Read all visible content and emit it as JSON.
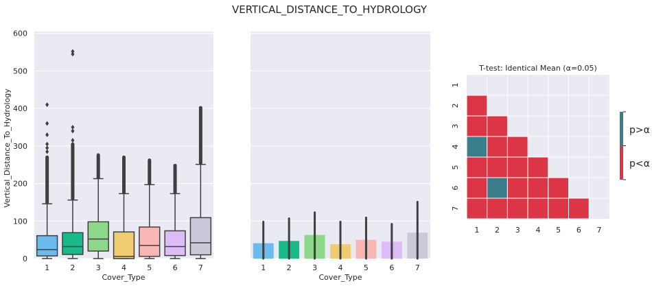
{
  "figure": {
    "title": "VERTICAL_DISTANCE_TO_HYDROLOGY"
  },
  "colors": {
    "panel_bg": "#eaeaf2",
    "grid": "#ffffff",
    "box_edge": "#3f3f3f",
    "significant": "#dc3545",
    "not_significant": "#3a7e8c",
    "categories": [
      "#6bbbef",
      "#19b98a",
      "#8ed88a",
      "#f0cc70",
      "#f8b7b4",
      "#dcbdf7",
      "#c9c9d9"
    ]
  },
  "chart_data": [
    {
      "type": "box",
      "xlabel": "Cover_Type",
      "ylabel": "Vertical_Distance_To_Hydrology",
      "categories": [
        "1",
        "2",
        "3",
        "4",
        "5",
        "6",
        "7"
      ],
      "ylim": [
        0,
        605
      ],
      "yticks": [
        0,
        100,
        200,
        300,
        400,
        500,
        600
      ],
      "grid": true,
      "boxes": [
        {
          "q1": 7,
          "median": 24,
          "q3": 61,
          "whisker_low": 0,
          "whisker_high": 146,
          "outliers_dense": [
            150,
            270
          ],
          "outliers": [
            285,
            295,
            305,
            330,
            360,
            410
          ]
        },
        {
          "q1": 11,
          "median": 32,
          "q3": 69,
          "whisker_low": 0,
          "whisker_high": 156,
          "outliers_dense": [
            160,
            305
          ],
          "outliers": [
            315,
            340,
            350,
            545,
            552
          ]
        },
        {
          "q1": 20,
          "median": 52,
          "q3": 98,
          "whisker_low": 0,
          "whisker_high": 213,
          "outliers_dense": [
            216,
            276
          ],
          "outliers": []
        },
        {
          "q1": 0,
          "median": 6,
          "q3": 71,
          "whisker_low": 0,
          "whisker_high": 173,
          "outliers_dense": [
            176,
            270
          ],
          "outliers": []
        },
        {
          "q1": 6,
          "median": 35,
          "q3": 84,
          "whisker_low": 0,
          "whisker_high": 197,
          "outliers_dense": [
            200,
            262
          ],
          "outliers": []
        },
        {
          "q1": 8,
          "median": 32,
          "q3": 74,
          "whisker_low": 0,
          "whisker_high": 173,
          "outliers_dense": [
            176,
            248
          ],
          "outliers": []
        },
        {
          "q1": 10,
          "median": 42,
          "q3": 109,
          "whisker_low": 0,
          "whisker_high": 251,
          "outliers_dense": [
            255,
            402
          ],
          "outliers": []
        }
      ]
    },
    {
      "type": "bar",
      "xlabel": "Cover_Type",
      "ylabel": "",
      "categories": [
        "1",
        "2",
        "3",
        "4",
        "5",
        "6",
        "7"
      ],
      "values": [
        41,
        47,
        63,
        38,
        50,
        45,
        69
      ],
      "error_low": [
        0,
        0,
        0,
        0,
        0,
        0,
        0
      ],
      "error_high": [
        98,
        107,
        123,
        98,
        109,
        92,
        151
      ],
      "ylim": [
        0,
        605
      ],
      "grid": true
    },
    {
      "type": "heatmap",
      "title": "T-test: Identical Mean (α=0.05)",
      "row_labels": [
        "1",
        "2",
        "3",
        "4",
        "5",
        "6",
        "7"
      ],
      "col_labels": [
        "1",
        "2",
        "3",
        "4",
        "5",
        "6",
        "7"
      ],
      "matrix": [
        [
          null,
          null,
          null,
          null,
          null,
          null,
          null
        ],
        [
          1,
          null,
          null,
          null,
          null,
          null,
          null
        ],
        [
          1,
          1,
          null,
          null,
          null,
          null,
          null
        ],
        [
          0,
          1,
          1,
          null,
          null,
          null,
          null
        ],
        [
          1,
          1,
          1,
          1,
          null,
          null,
          null
        ],
        [
          1,
          0,
          1,
          1,
          1,
          null,
          null
        ],
        [
          1,
          1,
          1,
          1,
          1,
          1,
          null
        ]
      ],
      "legend": [
        "p>α",
        "p<α"
      ]
    }
  ]
}
